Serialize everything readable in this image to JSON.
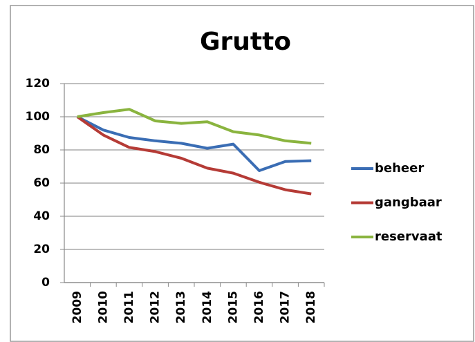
{
  "chart_data": {
    "type": "line",
    "title": "Grutto",
    "categories": [
      "2009",
      "2010",
      "2011",
      "2012",
      "2013",
      "2014",
      "2015",
      "2016",
      "2017",
      "2018"
    ],
    "series": [
      {
        "name": "beheer",
        "color": "#3a6db4",
        "values": [
          100,
          92,
          87.5,
          85.5,
          84,
          81,
          83.5,
          67.5,
          73,
          73.5
        ]
      },
      {
        "name": "gangbaar",
        "color": "#b53b36",
        "values": [
          100,
          89,
          81.5,
          79,
          75,
          69,
          66,
          60.5,
          56,
          53.5
        ]
      },
      {
        "name": "reservaat",
        "color": "#8ab43f",
        "values": [
          100,
          102.5,
          104.5,
          97.5,
          96,
          97,
          91,
          89,
          85.5,
          84
        ]
      }
    ],
    "ylim": [
      0,
      120
    ],
    "yticks": [
      0,
      20,
      40,
      60,
      80,
      100,
      120
    ],
    "grid": true,
    "legend": "right"
  }
}
